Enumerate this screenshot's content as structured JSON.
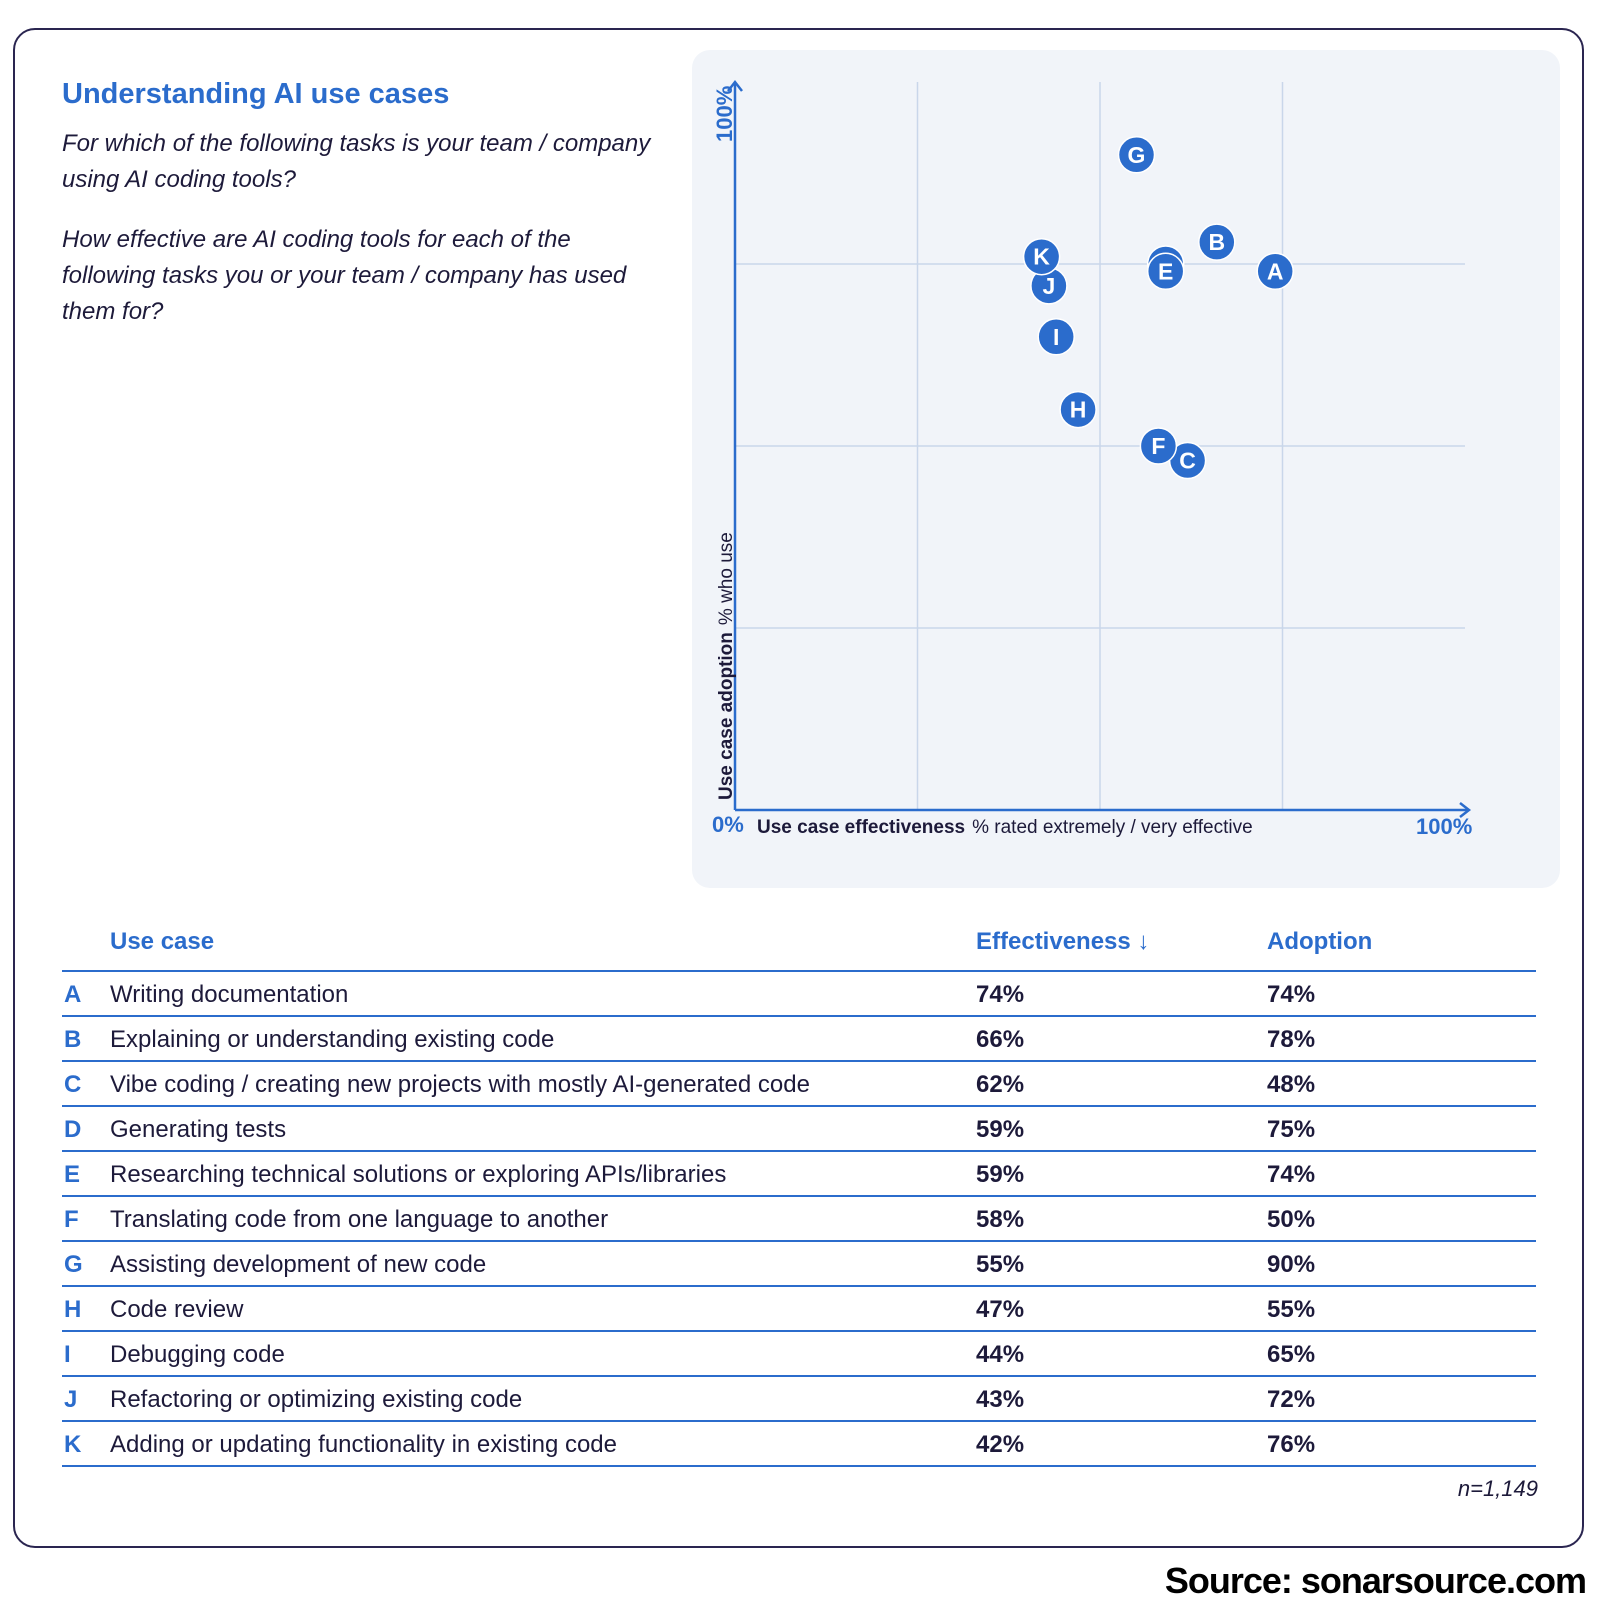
{
  "title": "Understanding AI use cases",
  "question1": "For which of the following tasks is your team / company using AI coding tools?",
  "question2": "How effective are AI coding tools for each of the following tasks you or your team / company has used them for?",
  "chart_data": {
    "type": "scatter",
    "xlabel_bold": "Use case effectiveness",
    "xlabel_rest": "% rated extremely / very effective",
    "ylabel_bold": "Use case adoption",
    "ylabel_rest": "% who use",
    "origin_label": "0%",
    "x_max_label": "100%",
    "y_max_label": "100%",
    "xlim": [
      0,
      100
    ],
    "ylim": [
      0,
      100
    ],
    "grid": true,
    "point_color": "#2b6ccc",
    "points": [
      {
        "label": "A",
        "x": 74,
        "y": 74
      },
      {
        "label": "B",
        "x": 66,
        "y": 78
      },
      {
        "label": "C",
        "x": 62,
        "y": 48
      },
      {
        "label": "D",
        "x": 59,
        "y": 75
      },
      {
        "label": "E",
        "x": 59,
        "y": 74
      },
      {
        "label": "F",
        "x": 58,
        "y": 50
      },
      {
        "label": "G",
        "x": 55,
        "y": 90
      },
      {
        "label": "H",
        "x": 47,
        "y": 55
      },
      {
        "label": "I",
        "x": 44,
        "y": 65
      },
      {
        "label": "J",
        "x": 43,
        "y": 72
      },
      {
        "label": "K",
        "x": 42,
        "y": 76
      }
    ]
  },
  "table": {
    "headers": {
      "use_case": "Use case",
      "effectiveness": "Effectiveness ↓",
      "adoption": "Adoption"
    },
    "rows": [
      {
        "letter": "A",
        "use_case": "Writing documentation",
        "effectiveness": "74%",
        "adoption": "74%"
      },
      {
        "letter": "B",
        "use_case": "Explaining or understanding existing code",
        "effectiveness": "66%",
        "adoption": "78%"
      },
      {
        "letter": "C",
        "use_case": "Vibe coding / creating new projects with mostly AI-generated code",
        "effectiveness": "62%",
        "adoption": "48%"
      },
      {
        "letter": "D",
        "use_case": "Generating tests",
        "effectiveness": "59%",
        "adoption": "75%"
      },
      {
        "letter": "E",
        "use_case": "Researching technical solutions or exploring APIs/libraries",
        "effectiveness": "59%",
        "adoption": "74%"
      },
      {
        "letter": "F",
        "use_case": "Translating code from one language to another",
        "effectiveness": "58%",
        "adoption": "50%"
      },
      {
        "letter": "G",
        "use_case": "Assisting development of new code",
        "effectiveness": "55%",
        "adoption": "90%"
      },
      {
        "letter": "H",
        "use_case": "Code review",
        "effectiveness": "47%",
        "adoption": "55%"
      },
      {
        "letter": "I",
        "use_case": "Debugging code",
        "effectiveness": "44%",
        "adoption": "65%"
      },
      {
        "letter": "J",
        "use_case": "Refactoring or optimizing existing code",
        "effectiveness": "43%",
        "adoption": "72%"
      },
      {
        "letter": "K",
        "use_case": "Adding or updating functionality in existing code",
        "effectiveness": "42%",
        "adoption": "76%"
      }
    ]
  },
  "sample_size": "n=1,149",
  "source": "Source: sonarsource.com"
}
